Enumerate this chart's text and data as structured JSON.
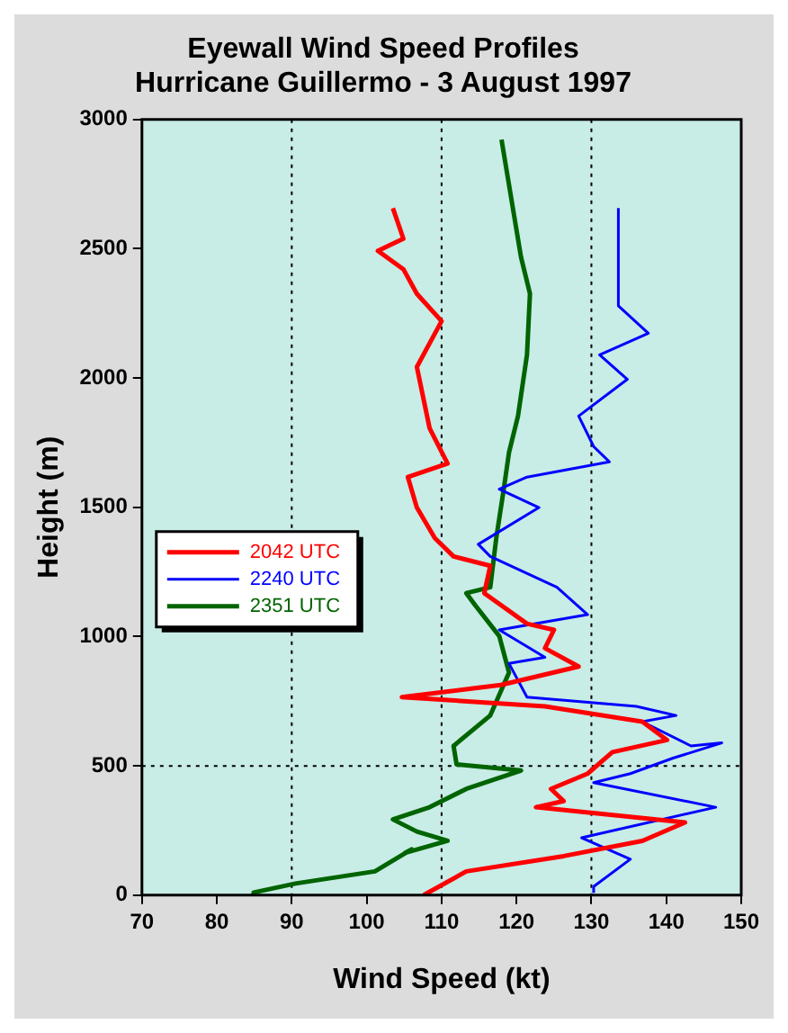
{
  "chart_data": {
    "type": "line",
    "title": [
      "Eyewall Wind Speed Profiles",
      "Hurricane Guillermo - 3 August 1997"
    ],
    "xlabel": "Wind Speed (kt)",
    "ylabel": "Height (m)",
    "xlim": [
      70,
      150
    ],
    "xticks": [
      70,
      80,
      90,
      100,
      110,
      120,
      130,
      140,
      150
    ],
    "ylim": [
      0,
      3000
    ],
    "yticks": [
      0,
      500,
      1000,
      1500,
      2000,
      2500,
      3000
    ],
    "grid": false,
    "legend": "left",
    "marker": "none",
    "line_style": "solid",
    "ref_lines": [
      {
        "axis": "x",
        "value": 90,
        "line_style": "dotted",
        "color": "#000000"
      },
      {
        "axis": "x",
        "value": 110,
        "line_style": "dotted",
        "color": "#000000"
      },
      {
        "axis": "x",
        "value": 130,
        "line_style": "dotted",
        "color": "#000000"
      },
      {
        "axis": "y",
        "value": 500,
        "line_style": "dotted",
        "color": "#000000"
      }
    ],
    "series": [
      {
        "name": "2042 UTC",
        "color": "#ff0000",
        "x": [
          107.6,
          113.3,
          126.3,
          136.8,
          142.5,
          122.6,
          126.3,
          124.6,
          129.5,
          132.8,
          140.1,
          136.8,
          123.8,
          104.7,
          117.9,
          128.3,
          123.8,
          125,
          121.4,
          115.7,
          116.5,
          111.6,
          109.1,
          106.7,
          105.5,
          110.8,
          108.4,
          106.7,
          110,
          106.7,
          104.9,
          101.5,
          104.9,
          103.5
        ],
        "values": [
          0,
          92,
          151,
          210,
          281,
          340,
          364,
          411,
          470,
          553,
          600,
          671,
          730,
          766,
          813,
          884,
          955,
          1026,
          1050,
          1168,
          1274,
          1310,
          1381,
          1499,
          1617,
          1669,
          1806,
          2043,
          2220,
          2326,
          2421,
          2492,
          2539,
          2657
        ]
      },
      {
        "name": "2240 UTC",
        "color": "#0000ff",
        "x": [
          130.3,
          130.3,
          135.2,
          128.7,
          146.6,
          130.3,
          135.2,
          140.9,
          147.4,
          143.3,
          136.8,
          141.3,
          136,
          121.4,
          119,
          123.8,
          117.7,
          129.5,
          125.4,
          116.5,
          114.9,
          123,
          117.7,
          121.4,
          132.4,
          130.3,
          128.3,
          134.8,
          131.1,
          137.6,
          133.6,
          133.6
        ],
        "values": [
          9,
          33,
          139,
          222,
          340,
          435,
          470,
          530,
          589,
          577,
          671,
          695,
          730,
          766,
          896,
          920,
          1026,
          1085,
          1191,
          1310,
          1357,
          1499,
          1570,
          1617,
          1676,
          1735,
          1853,
          1995,
          2090,
          2173,
          2279,
          2657
        ]
      },
      {
        "name": "2351 UTC",
        "color": "#006400",
        "x": [
          84.8,
          84.9,
          90.5,
          101.1,
          106,
          105.1,
          110.8,
          106.7,
          103.5,
          108.4,
          113.3,
          120.6,
          112,
          111.6,
          116.5,
          119,
          117.7,
          114.5,
          113.3,
          116.5,
          117.3,
          118.3,
          119,
          120.2,
          121.4,
          121.8,
          120.6,
          118
        ],
        "values": [
          0,
          10,
          45,
          92,
          177,
          163,
          210,
          246,
          293,
          340,
          411,
          482,
          506,
          577,
          695,
          861,
          1002,
          1121,
          1168,
          1191,
          1381,
          1570,
          1712,
          1853,
          2090,
          2326,
          2468,
          2922
        ]
      }
    ]
  }
}
